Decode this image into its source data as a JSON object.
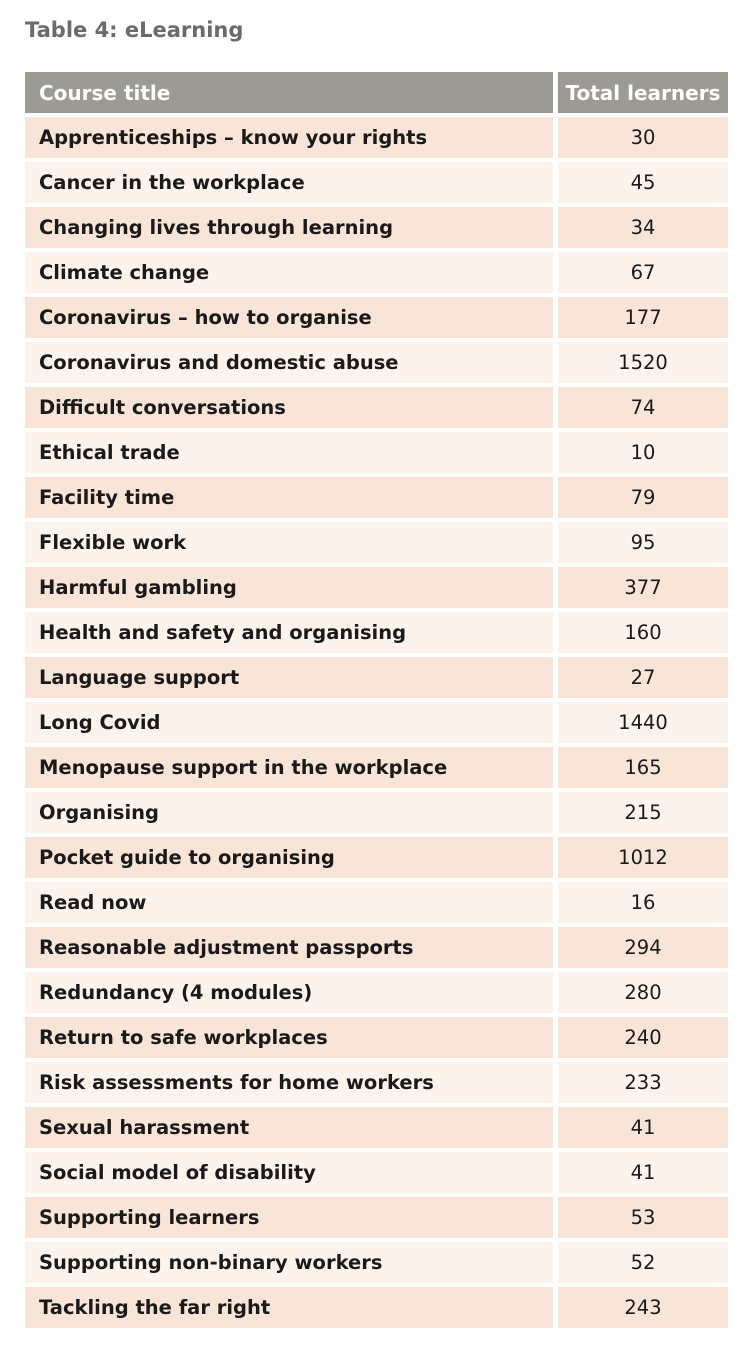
{
  "table": {
    "title": "Table 4: eLearning",
    "header": [
      "Course title",
      "Total learners"
    ],
    "rows": [
      [
        "Apprenticeships – know your rights",
        30
      ],
      [
        "Cancer in the workplace",
        45
      ],
      [
        "Changing lives through learning",
        34
      ],
      [
        "Climate change",
        67
      ],
      [
        "Coronavirus – how to organise",
        177
      ],
      [
        "Coronavirus and domestic abuse",
        1520
      ],
      [
        "Difficult conversations",
        74
      ],
      [
        "Ethical trade",
        10
      ],
      [
        "Facility time",
        79
      ],
      [
        "Flexible work",
        95
      ],
      [
        "Harmful gambling",
        377
      ],
      [
        "Health and safety and organising",
        160
      ],
      [
        "Language support",
        27
      ],
      [
        "Long Covid",
        1440
      ],
      [
        "Menopause support in the workplace",
        165
      ],
      [
        "Organising",
        215
      ],
      [
        "Pocket guide to organising",
        1012
      ],
      [
        "Read now",
        16
      ],
      [
        "Reasonable adjustment passports",
        294
      ],
      [
        "Redundancy (4 modules)",
        280
      ],
      [
        "Return to safe workplaces",
        240
      ],
      [
        "Risk assessments for home workers",
        233
      ],
      [
        "Sexual harassment",
        41
      ],
      [
        "Social model of disability",
        41
      ],
      [
        "Supporting learners",
        53
      ],
      [
        "Supporting non-binary workers",
        52
      ],
      [
        "Tackling the far right",
        243
      ]
    ]
  }
}
